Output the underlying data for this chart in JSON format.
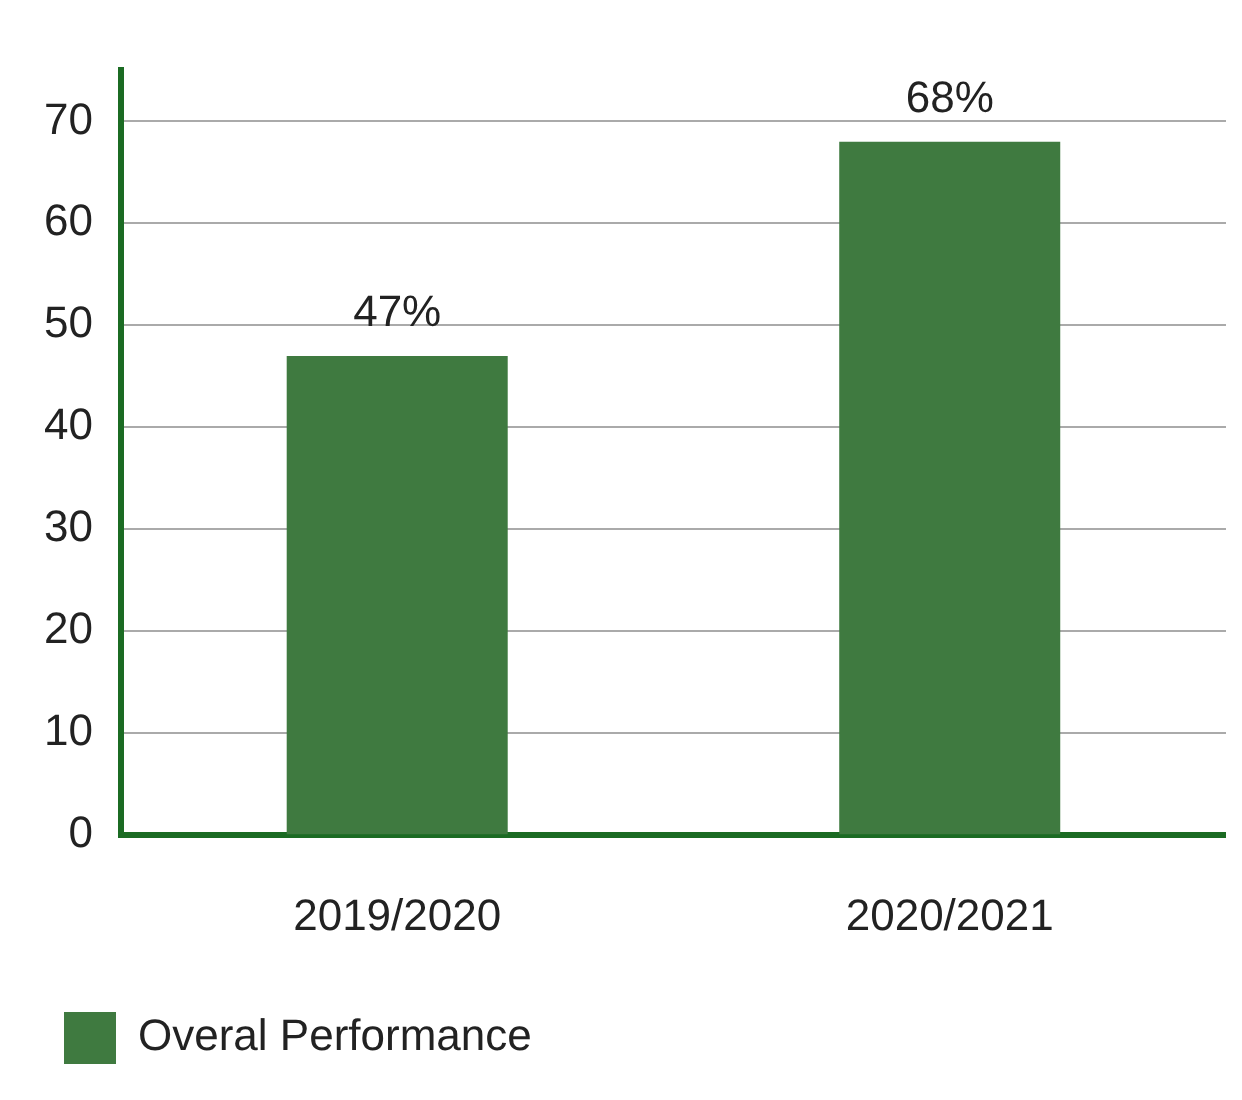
{
  "chart_data": {
    "type": "bar",
    "categories": [
      "2019/2020",
      "2020/2021"
    ],
    "series": [
      {
        "name": "Overal Performance",
        "color": "#3f7a40",
        "values": [
          47,
          68
        ],
        "value_labels": [
          "47%",
          "68%"
        ]
      }
    ],
    "ylim": [
      0,
      75
    ],
    "yticks": [
      0,
      10,
      20,
      30,
      40,
      50,
      60,
      70
    ],
    "grid": "y",
    "legend": "bottom left"
  }
}
